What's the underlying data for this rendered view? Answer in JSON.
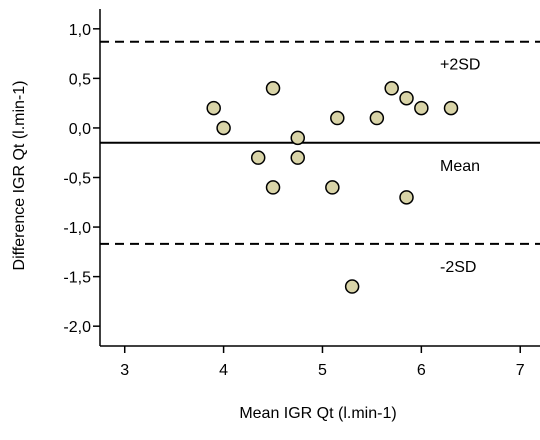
{
  "chart_data": {
    "type": "scatter",
    "title": "",
    "xlabel": "Mean IGR Qt (l.min-1)",
    "ylabel": "Difference IGR Qt (l.min-1)",
    "xlim": [
      2.75,
      7.2
    ],
    "ylim": [
      -2.2,
      1.2
    ],
    "xticks": [
      3,
      4,
      5,
      6,
      7
    ],
    "xtick_labels": [
      "3",
      "4",
      "5",
      "6",
      "7"
    ],
    "yticks": [
      1.0,
      0.5,
      0.0,
      -0.5,
      -1.0,
      -1.5,
      -2.0
    ],
    "ytick_labels": [
      "1,0",
      "0,5",
      "0,0",
      "-0,5",
      "-1,0",
      "-1,5",
      "-2,0"
    ],
    "grid": false,
    "marker_color": "#d9d4a8",
    "marker_edge_color": "#000000",
    "points": [
      {
        "x": 3.9,
        "y": 0.2
      },
      {
        "x": 4.0,
        "y": 0.0
      },
      {
        "x": 4.35,
        "y": -0.3
      },
      {
        "x": 4.5,
        "y": 0.4
      },
      {
        "x": 4.5,
        "y": -0.6
      },
      {
        "x": 4.75,
        "y": -0.1
      },
      {
        "x": 4.75,
        "y": -0.3
      },
      {
        "x": 5.1,
        "y": -0.6
      },
      {
        "x": 5.15,
        "y": 0.1
      },
      {
        "x": 5.3,
        "y": -1.6
      },
      {
        "x": 5.55,
        "y": 0.1
      },
      {
        "x": 5.7,
        "y": 0.4
      },
      {
        "x": 5.85,
        "y": 0.3
      },
      {
        "x": 5.85,
        "y": -0.7
      },
      {
        "x": 6.0,
        "y": 0.2
      },
      {
        "x": 6.3,
        "y": 0.2
      }
    ],
    "reference_lines": [
      {
        "label": "+2SD",
        "y": 0.87,
        "style": "dashed"
      },
      {
        "label": "Mean",
        "y": -0.15,
        "style": "solid"
      },
      {
        "label": "-2SD",
        "y": -1.17,
        "style": "dashed"
      }
    ]
  }
}
